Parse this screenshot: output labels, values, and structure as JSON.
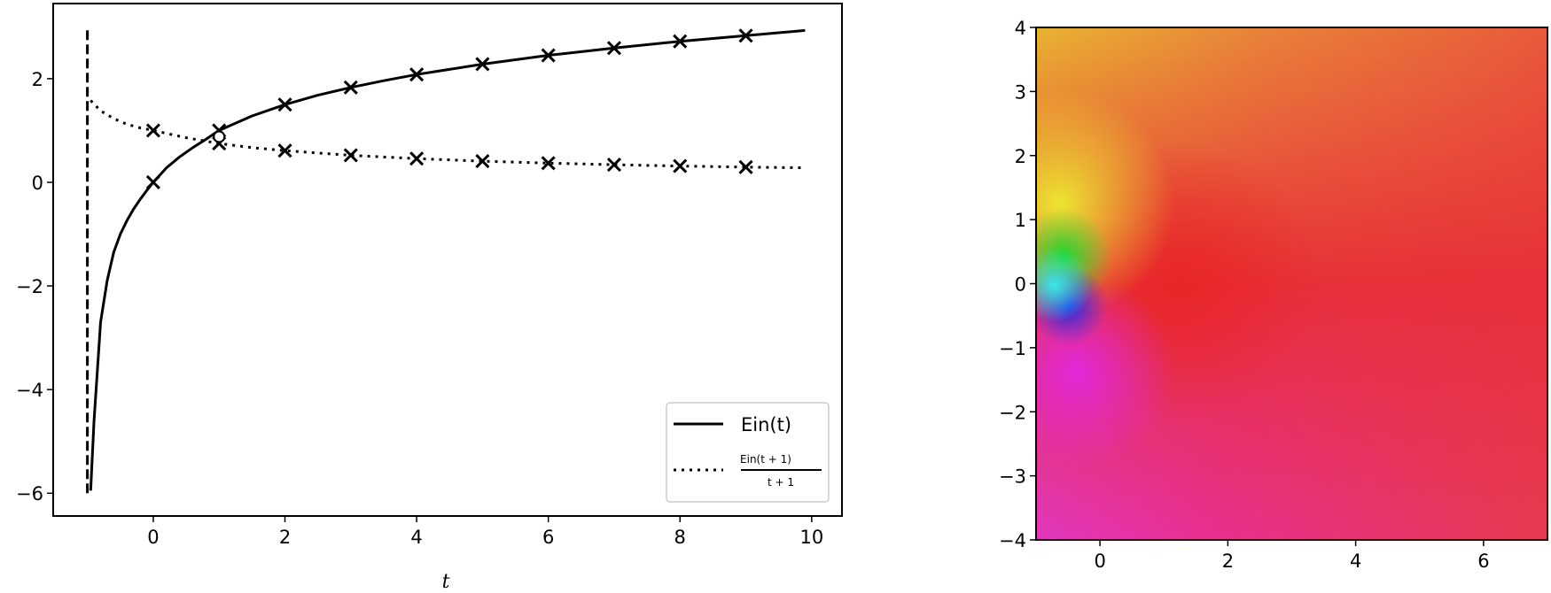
{
  "chart_data": [
    {
      "type": "line",
      "title": "",
      "xlabel": "t",
      "ylabel": "",
      "xlim": [
        -1.52,
        10.46
      ],
      "ylim": [
        -6.44,
        3.45
      ],
      "xticks": [
        0,
        2,
        4,
        6,
        8,
        10
      ],
      "yticks": [
        -6,
        -4,
        -2,
        0,
        2
      ],
      "xtick_labels": [
        "0",
        "2",
        "4",
        "6",
        "8",
        "10"
      ],
      "ytick_labels": [
        "−6",
        "−4",
        "−2",
        "0",
        "2"
      ],
      "grid": false,
      "legend_position": "lower right",
      "series": [
        {
          "name": "Ein(t)",
          "style": "solid",
          "curve_x": [
            -0.95,
            -0.9,
            -0.8,
            -0.7,
            -0.6,
            -0.5,
            -0.4,
            -0.3,
            -0.2,
            -0.1,
            0,
            0.2,
            0.4,
            0.6,
            0.8,
            1,
            1.5,
            2,
            2.5,
            3,
            3.5,
            4,
            5,
            6,
            7,
            8,
            9,
            9.9
          ],
          "curve_y": [
            -5.95,
            -4.6,
            -2.7,
            -1.9,
            -1.35,
            -1.0,
            -0.74,
            -0.52,
            -0.33,
            -0.16,
            0,
            0.28,
            0.49,
            0.67,
            0.83,
            1.0,
            1.28,
            1.5,
            1.68,
            1.83,
            1.96,
            2.08,
            2.28,
            2.45,
            2.59,
            2.72,
            2.83,
            2.93
          ],
          "markers_x": [
            0,
            1,
            2,
            3,
            4,
            5,
            6,
            7,
            8,
            9
          ],
          "markers_y": [
            0,
            1.0,
            1.5,
            1.83,
            2.08,
            2.28,
            2.45,
            2.59,
            2.72,
            2.83
          ]
        },
        {
          "name": "Ein(t + 1) / (t + 1)",
          "legend_numerator": "Ein(t + 1)",
          "legend_denominator": "t + 1",
          "style": "dotted",
          "curve_x": [
            -0.95,
            -0.8,
            -0.6,
            -0.4,
            -0.2,
            0,
            0.5,
            1,
            1.5,
            2,
            3,
            4,
            5,
            6,
            7,
            8,
            9,
            9.9
          ],
          "curve_y": [
            1.58,
            1.38,
            1.23,
            1.12,
            1.05,
            1.0,
            0.86,
            0.75,
            0.67,
            0.611,
            0.521,
            0.457,
            0.408,
            0.37,
            0.34,
            0.314,
            0.293,
            0.28
          ],
          "markers_x": [
            0,
            1,
            2,
            3,
            4,
            5,
            6,
            7,
            8,
            9
          ],
          "markers_y": [
            1.0,
            0.75,
            0.611,
            0.521,
            0.457,
            0.408,
            0.37,
            0.34,
            0.314,
            0.293
          ]
        },
        {
          "name": "asymptote t = -1",
          "style": "dashed",
          "curve_x": [
            -1,
            -1
          ],
          "curve_y": [
            -6,
            3
          ]
        }
      ],
      "annotations": [
        {
          "type": "open-circle",
          "x": 1,
          "y": 0.88
        }
      ]
    },
    {
      "type": "heatmap",
      "title": "",
      "subtype": "domain-coloring (hue = complex argument)",
      "xlabel": "",
      "ylabel": "",
      "xlim": [
        -1,
        7
      ],
      "ylim": [
        -4,
        4
      ],
      "xticks": [
        0,
        2,
        4,
        6
      ],
      "yticks": [
        -4,
        -3,
        -2,
        -1,
        0,
        1,
        2,
        3,
        4
      ],
      "xtick_labels": [
        "0",
        "2",
        "4",
        "6"
      ],
      "ytick_labels": [
        "−4",
        "−3",
        "−2",
        "−1",
        "0",
        "1",
        "2",
        "3",
        "4"
      ],
      "grid": false,
      "singular_point": [
        0,
        0
      ],
      "colors": {
        "top_left": "#e8b030",
        "top_right": "#e85a3a",
        "right_middle": "#e8283a",
        "bottom_right": "#e83a50",
        "bottom_left": "#e838b8",
        "near_origin_upper": "#18d830",
        "near_origin_left": "#30e0e0",
        "near_origin_lower": "#2030e8",
        "lower_left_magenta": "#e030e0"
      }
    }
  ],
  "left_axes": {
    "xlabel": "t",
    "legend": {
      "entry1": "Ein(t)",
      "entry2_num": "Ein(t + 1)",
      "entry2_den": "t + 1"
    }
  }
}
